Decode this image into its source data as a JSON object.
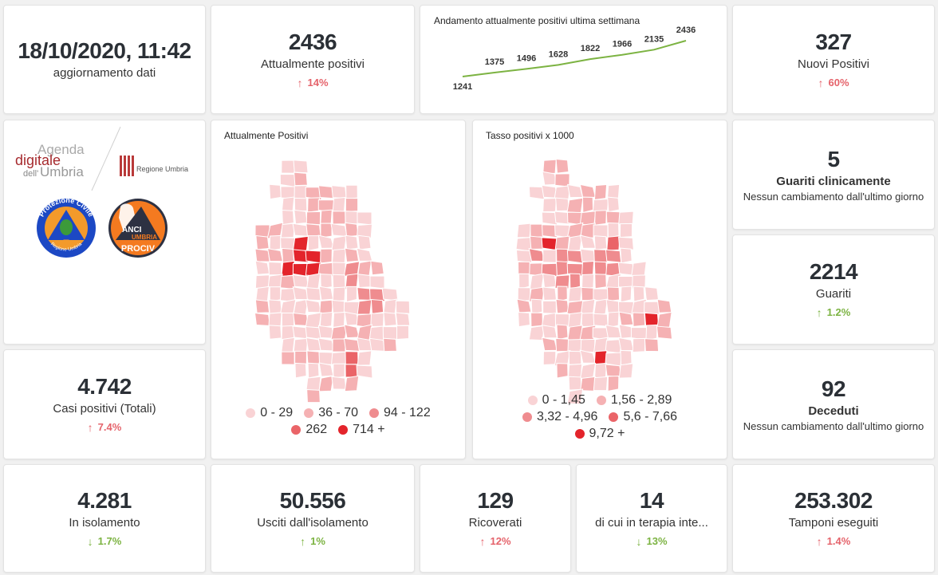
{
  "header": {
    "update_datetime": "18/10/2020, 11:42",
    "update_label": "aggiornamento dati"
  },
  "kpis": {
    "attualmente_positivi": {
      "value": "2436",
      "label": "Attualmente positivi",
      "delta": "14%",
      "direction": "up",
      "tone": "red"
    },
    "nuovi_positivi": {
      "value": "327",
      "label": "Nuovi Positivi",
      "delta": "60%",
      "direction": "up",
      "tone": "red"
    },
    "guariti_clinicamente": {
      "value": "5",
      "label": "Guariti clinicamente",
      "note": "Nessun cambiamento dall'ultimo giorno"
    },
    "guariti": {
      "value": "2214",
      "label": "Guariti",
      "delta": "1.2%",
      "direction": "up",
      "tone": "green"
    },
    "casi_totali": {
      "value": "4.742",
      "label": "Casi positivi (Totali)",
      "delta": "7.4%",
      "direction": "up",
      "tone": "red"
    },
    "deceduti": {
      "value": "92",
      "label": "Deceduti",
      "note": "Nessun cambiamento dall'ultimo giorno"
    },
    "isolamento": {
      "value": "4.281",
      "label": "In isolamento",
      "delta": "1.7%",
      "direction": "down",
      "tone": "green"
    },
    "usciti_isolamento": {
      "value": "50.556",
      "label": "Usciti dall'isolamento",
      "delta": "1%",
      "direction": "up",
      "tone": "green"
    },
    "ricoverati": {
      "value": "129",
      "label": "Ricoverati",
      "delta": "12%",
      "direction": "up",
      "tone": "red"
    },
    "terapia_intensiva": {
      "value": "14",
      "label": "di cui in terapia inte...",
      "delta": "13%",
      "direction": "down",
      "tone": "green"
    },
    "tamponi": {
      "value": "253.302",
      "label": "Tamponi eseguiti",
      "delta": "1.4%",
      "direction": "up",
      "tone": "red"
    }
  },
  "icons": {
    "up": "↑",
    "down": "↓"
  },
  "colors": {
    "red_delta": "#e5636b",
    "green_delta": "#7cb342",
    "trend_line": "#7cb342"
  },
  "logos": {
    "agenda_line1": "Agenda",
    "agenda_line2": "digitale",
    "agenda_line3a": "dell'",
    "agenda_line3b": "Umbria",
    "regione": "Regione Umbria",
    "protezione_top": "Protezione Civile",
    "protezione_bottom": "Regione Umbria",
    "anci_1": "ANCI",
    "anci_2": "UMBRIA",
    "anci_3": "PROCIV"
  },
  "chart_data": {
    "type": "line",
    "title": "Andamento attualmente positivi ultima settimana",
    "x": [
      1,
      2,
      3,
      4,
      5,
      6,
      7,
      8
    ],
    "values": [
      1241,
      1375,
      1496,
      1628,
      1822,
      1966,
      2135,
      2436
    ],
    "xlabel": "",
    "ylabel": "",
    "grid": false,
    "color": "#7cb342"
  },
  "maps": [
    {
      "title": "Attualmente Positivi",
      "legend": [
        {
          "label": "0 - 29",
          "color": "#f9d3d5"
        },
        {
          "label": "36 - 70",
          "color": "#f5b1b3"
        },
        {
          "label": "94 - 122",
          "color": "#ef8c8f"
        },
        {
          "label": "262",
          "color": "#ea6468"
        },
        {
          "label": "714 +",
          "color": "#e3242b"
        }
      ]
    },
    {
      "title": "Tasso positivi x 1000",
      "legend": [
        {
          "label": "0 - 1,45",
          "color": "#f9d3d5"
        },
        {
          "label": "1,56 - 2,89",
          "color": "#f5b1b3"
        },
        {
          "label": "3,32 - 4,96",
          "color": "#ef8c8f"
        },
        {
          "label": "5,6 - 7,66",
          "color": "#ea6468"
        },
        {
          "label": "9,72 +",
          "color": "#e3242b"
        }
      ]
    }
  ]
}
